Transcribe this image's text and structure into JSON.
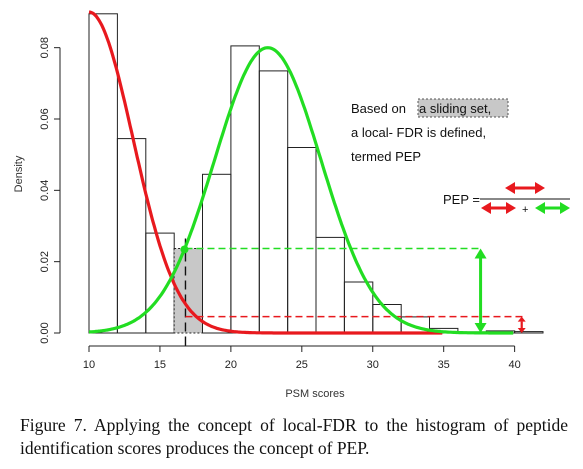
{
  "chart_data": {
    "type": "histogram",
    "xlabel": "PSM scores",
    "ylabel": "Density",
    "xlim": [
      10,
      42
    ],
    "ylim": [
      0,
      0.09
    ],
    "x_ticks": [
      "10",
      "15",
      "20",
      "25",
      "30",
      "35",
      "40"
    ],
    "y_ticks": [
      "0.00",
      "0.02",
      "0.04",
      "0.06",
      "0.08"
    ],
    "bins": [
      {
        "x0": 10,
        "x1": 12,
        "density": 0.0895
      },
      {
        "x0": 12,
        "x1": 14,
        "density": 0.0545
      },
      {
        "x0": 14,
        "x1": 16,
        "density": 0.028
      },
      {
        "x0": 16,
        "x1": 18,
        "density": 0.0237
      },
      {
        "x0": 18,
        "x1": 20,
        "density": 0.0445
      },
      {
        "x0": 20,
        "x1": 22,
        "density": 0.0805
      },
      {
        "x0": 22,
        "x1": 24,
        "density": 0.0735
      },
      {
        "x0": 24,
        "x1": 26,
        "density": 0.052
      },
      {
        "x0": 26,
        "x1": 28,
        "density": 0.0268
      },
      {
        "x0": 28,
        "x1": 30,
        "density": 0.0143
      },
      {
        "x0": 30,
        "x1": 32,
        "density": 0.008
      },
      {
        "x0": 32,
        "x1": 34,
        "density": 0.0045
      },
      {
        "x0": 34,
        "x1": 36,
        "density": 0.0013
      },
      {
        "x0": 36,
        "x1": 38,
        "density": 0.0003
      },
      {
        "x0": 38,
        "x1": 40,
        "density": 0.0006
      },
      {
        "x0": 40,
        "x1": 42,
        "density": 0.0004
      }
    ],
    "highlight_bin": {
      "x0": 16,
      "x1": 18,
      "fill": "#c8c8c8"
    },
    "series": [
      {
        "kind": "decoy-curve",
        "color": "#e8191e",
        "peak_x": 10,
        "peak_y": 0.09,
        "decay_sigma": 3.1,
        "x_end": 35
      },
      {
        "kind": "target-curve",
        "color": "#22dd22",
        "mean": 22.6,
        "sigma": 3.75,
        "peak_y": 0.08,
        "x_start": 10,
        "x_end": 40
      }
    ],
    "threshold_x": 16.8,
    "dashed_green_y": 0.0237,
    "dashed_red_y": 0.0046,
    "arrow_x": 37.6,
    "small_arrow_x": 40.5,
    "annotation": {
      "line1_prefix": "Based on",
      "line1_highlight": "a sliding set,",
      "line2": "a local- FDR is defined,",
      "line3": "termed PEP",
      "pep_label": "PEP =",
      "plus": "+"
    },
    "colors": {
      "red": "#e8191e",
      "green": "#22dd22",
      "highlight": "#c8c8c8"
    }
  },
  "caption": {
    "label": "Figure 7.",
    "text": "Applying the concept of local-FDR to the histogram of peptide identification scores produces the concept of PEP."
  }
}
